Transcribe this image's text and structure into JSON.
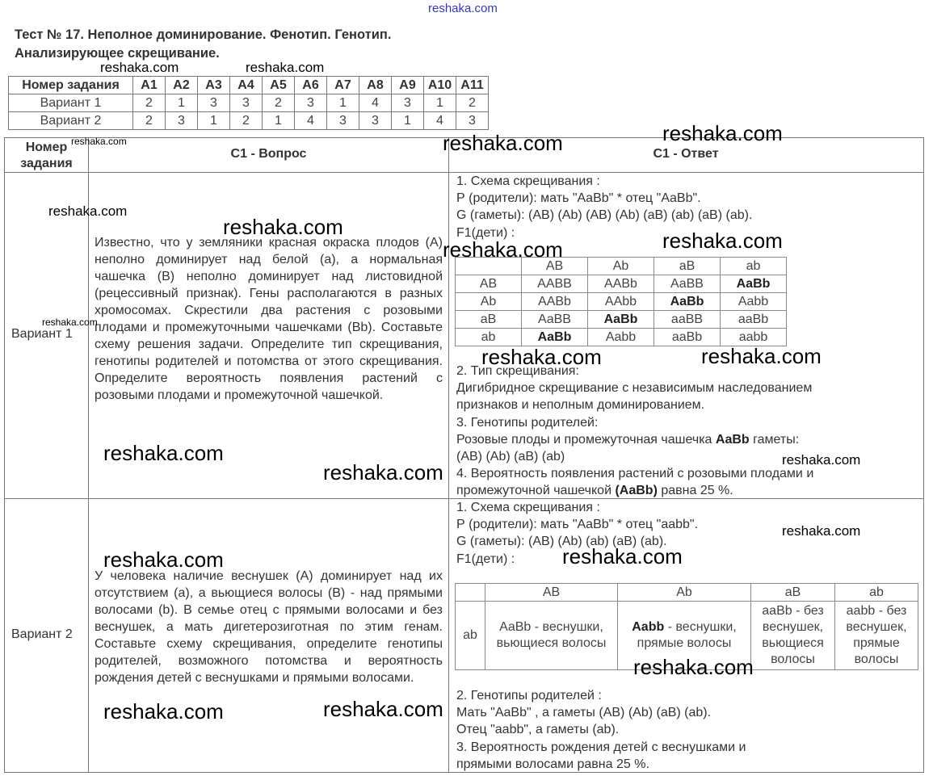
{
  "top_watermark": "reshaka.com",
  "title_line1": "Тест № 17. Неполное доминирование. Фенотип. Генотип.",
  "title_line2": "Анализирующее скрещивание.",
  "answers_table": {
    "header": [
      "Номер задания",
      "A1",
      "A2",
      "A3",
      "A4",
      "A5",
      "A6",
      "A7",
      "A8",
      "A9",
      "A10",
      "A11"
    ],
    "rows": [
      [
        "Вариант 1",
        "2",
        "1",
        "3",
        "3",
        "2",
        "3",
        "1",
        "4",
        "3",
        "1",
        "2"
      ],
      [
        "Вариант 2",
        "2",
        "3",
        "1",
        "2",
        "1",
        "4",
        "3",
        "3",
        "1",
        "4",
        "3"
      ]
    ]
  },
  "main": {
    "col1_header_1": "Номер",
    "col1_header_2": "задания",
    "col2_header": "C1 - Вопрос",
    "col3_header": "C1 - Ответ",
    "variant1": {
      "label": "Вариант 1",
      "question": "Известно, что у земляники красная окраска плодов (А) неполно доминирует над белой (а), а нормальная чашечка (В) неполно доминирует над листовидной (рецессивный признак). Гены располагаются в разных хромосомах. Скрестили два растения с розовыми плодами и промежуточными чашечками (Вb). Составьте схему решения задачи. Определите тип скрещивания, генотипы родителей и потомства от этого скрещивания. Определите вероятность появления растений с розовыми плодами и промежуточной чашечкой.",
      "answer_lines_before": [
        "1. Схема скрещивания :",
        "Р (родители): мать \"AaBb\" * отец \"AaBb\".",
        "G (гаметы): (AB) (Ab) (AB) (Ab) (aB) (ab) (aB) (ab).",
        "F1(дети) :"
      ],
      "punnett": {
        "cols": [
          "",
          "AB",
          "Ab",
          "aB",
          "ab"
        ],
        "rows": [
          [
            "AB",
            "AABB",
            "AABb",
            "AaBB",
            "AaBb"
          ],
          [
            "Ab",
            "AABb",
            "AAbb",
            "AaBb",
            "Aabb"
          ],
          [
            "aB",
            "AaBB",
            "AaBb",
            "aaBB",
            "aaBb"
          ],
          [
            "ab",
            "AaBb",
            "Aabb",
            "aaBb",
            "aabb"
          ]
        ]
      },
      "answer_line_2": "2. Тип скрещивания:",
      "answer_line_3": "Дигибридное скрещивание с независимым наследованием",
      "answer_line_4": "признаков и неполным доминированием.",
      "answer_line_5": "3. Генотипы родителей:",
      "answer_line_6a": "Розовые плоды и промежуточная чашечка ",
      "answer_line_6b": "AaBb",
      "answer_line_6c": " гаметы:",
      "answer_line_7": "(AB) (Ab) (aB) (ab)",
      "answer_line_8": "4. Вероятность появления растений с розовыми плодами и",
      "answer_line_9a": "промежуточной чашечкой ",
      "answer_line_9b": "(AaBb)",
      "answer_line_9c": " равна 25 %."
    },
    "variant2": {
      "label": "Вариант 2",
      "question": "У человека наличие веснушек (А) доминирует над их отсутствием (а), а вьющиеся волосы (В) - над прямыми волосами (b). В семье отец с прямыми волосами и без веснушек, а мать дигетерозиготная по этим генам. Составьте схему скрещивания, определите генотипы родителей, возможного потомства и вероятность рождения детей с веснушками и прямыми волосами.",
      "answer_lines_before": [
        "1. Схема скрещивания :",
        "Р (родители): мать \"AaBb\" * отец \"aabb\".",
        "G (гаметы): (AB) (Ab) (ab) (aB) (ab).",
        "F1(дети) :"
      ],
      "punnett": {
        "cols": [
          "",
          "AB",
          "Ab",
          "aB",
          "ab"
        ],
        "row_label": "ab",
        "cells": [
          {
            "genotype": "AaBb",
            "text": " - веснушки, вьющиеся волосы",
            "bold": false
          },
          {
            "genotype": "Aabb",
            "text": " - веснушки, прямые волосы",
            "bold": true
          },
          {
            "genotype": "aaBb",
            "text": " - без веснушек, вьющиеся волосы",
            "bold": false
          },
          {
            "genotype": "aabb",
            "text": " - без веснушек, прямые волосы",
            "bold": false
          }
        ]
      },
      "answer_lines_after": [
        "2. Генотипы родителей :",
        "Мать \"AaBb\" , а гаметы (AB) (Ab) (aB) (ab).",
        "Отец \"aabb\", а гаметы (ab).",
        "3. Вероятность рождения детей с веснушками и",
        "прямыми волосами равна 25 %."
      ]
    }
  },
  "watermark": "reshaka.com"
}
